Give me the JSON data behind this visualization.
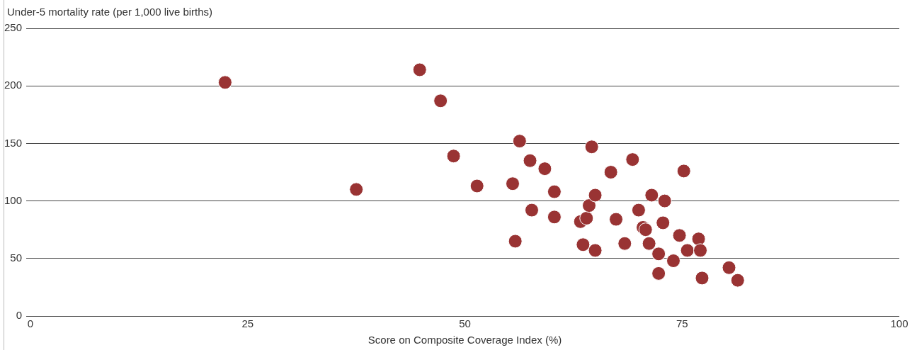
{
  "chart_data": {
    "type": "scatter",
    "xlabel": "Score on Composite Coverage Index (%)",
    "ylabel": "Under-5 mortality rate (per 1,000 live births)",
    "x": [
      22.4,
      37.5,
      44.8,
      47.2,
      48.7,
      51.4,
      55.5,
      55.8,
      56.3,
      57.5,
      57.7,
      59.2,
      60.3,
      60.3,
      63.3,
      63.6,
      64.0,
      64.3,
      64.6,
      65.0,
      65.0,
      66.8,
      67.4,
      68.4,
      69.3,
      70.0,
      70.5,
      70.8,
      71.2,
      71.5,
      72.3,
      72.3,
      72.8,
      73.0,
      74.0,
      74.7,
      75.2,
      75.6,
      76.9,
      77.1,
      77.3,
      80.4,
      81.4
    ],
    "values": [
      203,
      110,
      214,
      187,
      139,
      113,
      115,
      65,
      152,
      135,
      92,
      128,
      108,
      86,
      82,
      62,
      85,
      96,
      147,
      105,
      57,
      125,
      84,
      63,
      136,
      92,
      77,
      75,
      63,
      105,
      54,
      37,
      81,
      100,
      48,
      70,
      126,
      57,
      67,
      57,
      33,
      42,
      31
    ],
    "color": "#993333",
    "marker": "circle",
    "xlim": [
      0,
      100
    ],
    "xticks": [
      0,
      25,
      50,
      75,
      100
    ],
    "ylim": [
      0,
      250
    ],
    "yticks": [
      0,
      50,
      100,
      150,
      200,
      250
    ],
    "grid": "y",
    "legend": false
  }
}
